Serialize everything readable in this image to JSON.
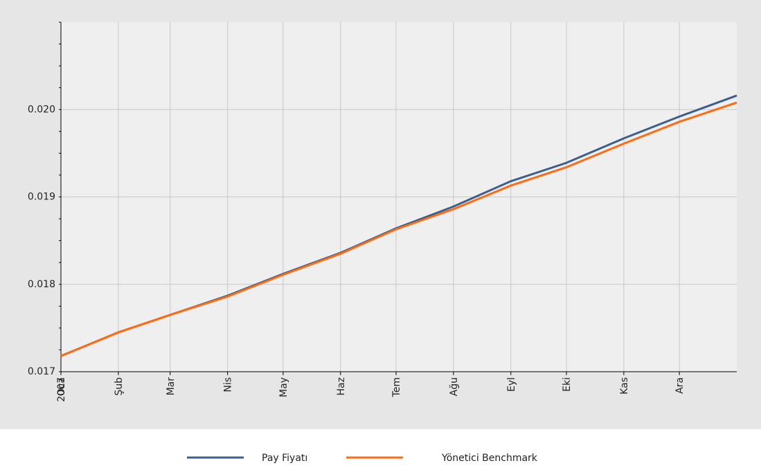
{
  "chart_data": {
    "type": "line",
    "x": [
      "2007-01",
      "2007-02",
      "2007-03",
      "2007-04",
      "2007-05",
      "2007-06",
      "2007-07",
      "2007-08",
      "2007-09",
      "2007-10",
      "2007-11",
      "2007-12",
      "2008-01"
    ],
    "series": [
      {
        "name": "Pay Fiyatı",
        "color": "#3a5f8f",
        "values": [
          0.01718,
          0.01745,
          0.01765,
          0.01787,
          0.01812,
          0.01836,
          0.01864,
          0.01889,
          0.01918,
          0.01939,
          0.01967,
          0.01992,
          0.02016
        ]
      },
      {
        "name": "Yönetici Benchmark",
        "color": "#ff6a13",
        "values": [
          0.01718,
          0.01745,
          0.01765,
          0.01786,
          0.01811,
          0.01835,
          0.01863,
          0.01886,
          0.01913,
          0.01934,
          0.01961,
          0.01986,
          0.02008
        ]
      }
    ],
    "year_label": "2007",
    "xlim": [
      "2007-01",
      "2008-01"
    ],
    "xticks": [
      {
        "value": "2007-01",
        "label": "Oca"
      },
      {
        "value": "2007-02",
        "label": "Şub"
      },
      {
        "value": "2007-03",
        "label": "Mar"
      },
      {
        "value": "2007-04",
        "label": "Nis"
      },
      {
        "value": "2007-05",
        "label": "May"
      },
      {
        "value": "2007-06",
        "label": "Haz"
      },
      {
        "value": "2007-07",
        "label": "Tem"
      },
      {
        "value": "2007-08",
        "label": "Ağu"
      },
      {
        "value": "2007-09",
        "label": "Eyl"
      },
      {
        "value": "2007-10",
        "label": "Eki"
      },
      {
        "value": "2007-11",
        "label": "Kas"
      },
      {
        "value": "2007-12",
        "label": "Ara"
      }
    ],
    "ylim": [
      0.017,
      0.021
    ],
    "yticks": [
      0.017,
      0.018,
      0.019,
      {
        "value": 0.02,
        "label": "0.020"
      }
    ],
    "grid": true,
    "legend": "bottom"
  }
}
